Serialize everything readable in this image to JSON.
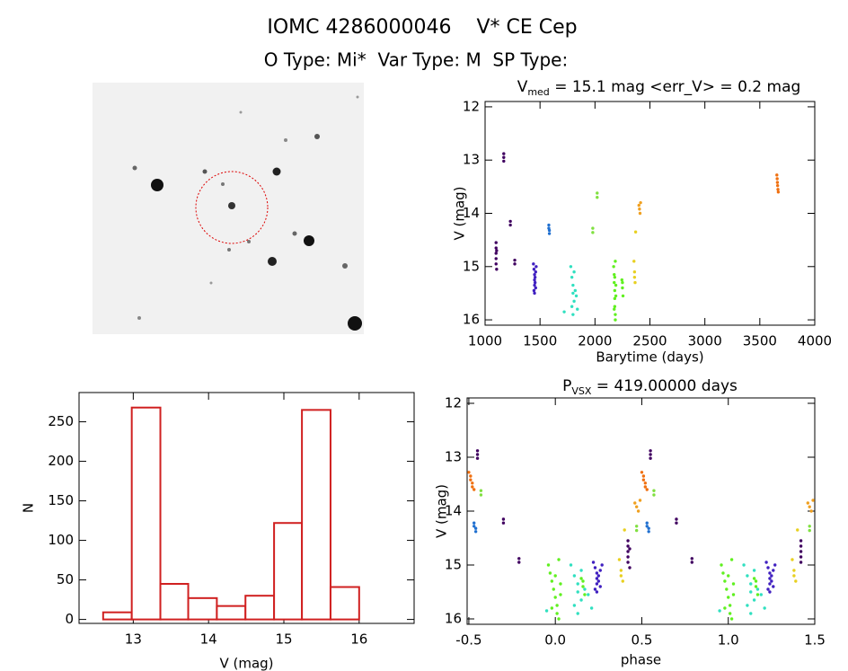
{
  "header": {
    "title": "IOMC 4286000046    V* CE Cep",
    "subtitle": "O Type: Mi*  Var Type: M  SP Type:"
  },
  "chart_data": [
    {
      "type": "scatter",
      "title": {
        "base": "V",
        "sub": "med",
        "rest": " = 15.1 mag <err_V> = 0.2 mag"
      },
      "xlabel": "Barytime (days)",
      "ylabel": "V (mag)",
      "xlim": [
        1000,
        4000
      ],
      "ylim": [
        16.1,
        11.9
      ],
      "xticks": [
        1000,
        1500,
        2000,
        2500,
        3000,
        3500,
        4000
      ],
      "yticks": [
        12,
        13,
        14,
        15,
        16
      ],
      "series": [
        {
          "color": "#400060",
          "x": [
            1100,
            1100,
            1100,
            1100,
            1100,
            1105,
            1105,
            1170,
            1170,
            1170,
            1230,
            1230,
            1270,
            1270
          ],
          "values": [
            14.55,
            14.65,
            14.75,
            14.85,
            14.95,
            15.05,
            14.7,
            12.88,
            12.95,
            13.02,
            14.15,
            14.22,
            14.88,
            14.95
          ]
        },
        {
          "color": "#4020c0",
          "x": [
            1440,
            1445,
            1450,
            1450,
            1455,
            1460,
            1445,
            1450,
            1455,
            1460,
            1450,
            1465
          ],
          "values": [
            14.95,
            15.05,
            15.15,
            15.25,
            15.3,
            15.4,
            15.45,
            15.5,
            15.2,
            15.1,
            15.35,
            15.0
          ]
        },
        {
          "color": "#2070d0",
          "x": [
            1580,
            1580,
            1585,
            1585
          ],
          "values": [
            14.22,
            14.28,
            14.32,
            14.38
          ]
        },
        {
          "color": "#30e0c0",
          "x": [
            1720,
            1780,
            1790,
            1800,
            1800,
            1810,
            1820,
            1830,
            1840,
            1790,
            1810,
            1800
          ],
          "values": [
            15.85,
            15.0,
            15.2,
            15.35,
            15.5,
            15.65,
            15.45,
            15.55,
            15.8,
            15.75,
            15.1,
            15.9
          ]
        },
        {
          "color": "#80e040",
          "x": [
            1980,
            1980,
            2020,
            2020
          ],
          "values": [
            14.28,
            14.36,
            13.62,
            13.7
          ]
        },
        {
          "color": "#60f020",
          "x": [
            2170,
            2175,
            2175,
            2180,
            2180,
            2180,
            2185,
            2185,
            2190,
            2190,
            2180,
            2175,
            2185,
            2245,
            2250,
            2255,
            2250
          ],
          "values": [
            15.0,
            15.15,
            15.3,
            15.45,
            15.6,
            15.75,
            15.9,
            16.0,
            15.55,
            15.35,
            15.2,
            15.8,
            14.9,
            15.25,
            15.4,
            15.55,
            15.3
          ]
        },
        {
          "color": "#e8d020",
          "x": [
            2355,
            2360,
            2360,
            2365,
            2370
          ],
          "values": [
            14.9,
            15.1,
            15.2,
            15.3,
            14.35
          ]
        },
        {
          "color": "#f0a020",
          "x": [
            2400,
            2405,
            2410,
            2415
          ],
          "values": [
            13.85,
            13.92,
            14.0,
            13.8
          ]
        },
        {
          "color": "#f07010",
          "x": [
            3655,
            3658,
            3660,
            3662,
            3665,
            3668
          ],
          "values": [
            13.28,
            13.35,
            13.42,
            13.48,
            13.55,
            13.6
          ]
        }
      ]
    },
    {
      "type": "histogram",
      "xlabel": "V (mag)",
      "ylabel": "N",
      "bins": [
        12.6,
        12.98,
        13.36,
        13.73,
        14.11,
        14.49,
        14.87,
        15.24,
        15.62,
        16.0
      ],
      "values": [
        9,
        268,
        45,
        27,
        17,
        30,
        122,
        265,
        41
      ],
      "color": "#d02020",
      "xlim": [
        12.28,
        16.73
      ],
      "ylim": [
        -5,
        287
      ],
      "xticks": [
        13,
        14,
        15,
        16
      ],
      "yticks": [
        0,
        50,
        100,
        150,
        200,
        250
      ]
    },
    {
      "type": "scatter",
      "title": {
        "base": "P",
        "sub": "VSX",
        "rest": " = 419.00000 days"
      },
      "xlabel": "phase",
      "ylabel": "V (mag)",
      "xlim": [
        -0.51,
        1.5
      ],
      "ylim": [
        16.1,
        11.9
      ],
      "xticks": [
        -0.5,
        {
          "value": 0,
          "label": "0.0"
        },
        0.5,
        {
          "value": 1,
          "label": "1.0"
        },
        1.5
      ],
      "yticks": [
        12,
        13,
        14,
        15,
        16
      ],
      "series": [
        {
          "color": "#400060",
          "x": [
            0.42,
            0.42,
            0.42,
            0.42,
            0.42,
            0.43,
            0.43,
            0.55,
            0.55,
            0.55,
            -0.45,
            -0.45,
            -0.45,
            0.7,
            0.7,
            -0.3,
            -0.3,
            0.79,
            0.79,
            -0.21,
            -0.21,
            1.42,
            1.42,
            1.42,
            1.42,
            1.42
          ],
          "values": [
            14.55,
            14.65,
            14.75,
            14.85,
            14.95,
            15.05,
            14.7,
            12.88,
            12.95,
            13.02,
            12.88,
            12.95,
            13.02,
            14.15,
            14.22,
            14.15,
            14.22,
            14.88,
            14.95,
            14.88,
            14.95,
            14.55,
            14.65,
            14.75,
            14.85,
            14.95
          ]
        },
        {
          "color": "#4020c0",
          "x": [
            0.22,
            0.23,
            0.24,
            0.24,
            0.25,
            0.26,
            0.23,
            0.24,
            0.25,
            0.26,
            0.24,
            0.27,
            1.22,
            1.23,
            1.24,
            1.24,
            1.25,
            1.26,
            1.23,
            1.24,
            1.25,
            1.26,
            1.24,
            1.27
          ],
          "values": [
            14.95,
            15.05,
            15.15,
            15.25,
            15.3,
            15.4,
            15.45,
            15.5,
            15.2,
            15.1,
            15.35,
            15.0,
            14.95,
            15.05,
            15.15,
            15.25,
            15.3,
            15.4,
            15.45,
            15.5,
            15.2,
            15.1,
            15.35,
            15.0
          ]
        },
        {
          "color": "#2070d0",
          "x": [
            -0.47,
            -0.47,
            -0.46,
            -0.46,
            0.53,
            0.53,
            0.54,
            0.54
          ],
          "values": [
            14.22,
            14.28,
            14.32,
            14.38,
            14.22,
            14.28,
            14.32,
            14.38
          ]
        },
        {
          "color": "#30e0c0",
          "x": [
            -0.05,
            0.09,
            0.11,
            0.13,
            0.13,
            0.15,
            0.17,
            0.19,
            0.21,
            0.11,
            0.15,
            0.13,
            0.95,
            1.09,
            1.11,
            1.13,
            1.13,
            1.15,
            1.17,
            1.19,
            1.21,
            1.11,
            1.15,
            1.13
          ],
          "values": [
            15.85,
            15.0,
            15.2,
            15.35,
            15.5,
            15.65,
            15.45,
            15.55,
            15.8,
            15.75,
            15.1,
            15.9,
            15.85,
            15.0,
            15.2,
            15.35,
            15.5,
            15.65,
            15.45,
            15.55,
            15.8,
            15.75,
            15.1,
            15.9
          ]
        },
        {
          "color": "#80e040",
          "x": [
            0.47,
            0.47,
            0.57,
            0.57,
            -0.43,
            -0.43,
            1.47,
            1.47
          ],
          "values": [
            14.28,
            14.36,
            13.62,
            13.7,
            13.62,
            13.7,
            14.28,
            14.36
          ]
        },
        {
          "color": "#60f020",
          "x": [
            -0.04,
            -0.03,
            -0.02,
            -0.01,
            0.0,
            0.01,
            0.01,
            0.02,
            0.03,
            0.03,
            0.0,
            -0.02,
            0.02,
            0.15,
            0.16,
            0.17,
            0.16,
            0.96,
            0.97,
            0.98,
            0.99,
            1.0,
            1.01,
            1.01,
            1.02,
            1.03,
            1.03,
            1.0,
            0.98,
            1.02,
            1.15,
            1.16,
            1.17,
            1.16
          ],
          "values": [
            15.0,
            15.15,
            15.3,
            15.45,
            15.6,
            15.75,
            15.9,
            16.0,
            15.55,
            15.35,
            15.2,
            15.8,
            14.9,
            15.25,
            15.4,
            15.55,
            15.3,
            15.0,
            15.15,
            15.3,
            15.45,
            15.6,
            15.75,
            15.9,
            16.0,
            15.55,
            15.35,
            15.2,
            15.8,
            14.9,
            15.25,
            15.4,
            15.55,
            15.3
          ]
        },
        {
          "color": "#e8d020",
          "x": [
            0.37,
            0.38,
            0.38,
            0.39,
            0.4,
            1.37,
            1.38,
            1.38,
            1.39,
            1.4
          ],
          "values": [
            14.9,
            15.1,
            15.2,
            15.3,
            14.35,
            14.9,
            15.1,
            15.2,
            15.3,
            14.35
          ]
        },
        {
          "color": "#f0a020",
          "x": [
            0.46,
            0.47,
            0.48,
            0.49,
            1.46,
            1.47,
            1.48,
            1.49
          ],
          "values": [
            13.85,
            13.92,
            14.0,
            13.8,
            13.85,
            13.92,
            14.0,
            13.8
          ]
        },
        {
          "color": "#f07010",
          "x": [
            0.5,
            0.51,
            0.51,
            0.52,
            0.52,
            0.53,
            -0.5,
            -0.49,
            -0.49,
            -0.48,
            -0.48,
            -0.47
          ],
          "values": [
            13.28,
            13.35,
            13.42,
            13.48,
            13.55,
            13.6,
            13.28,
            13.35,
            13.42,
            13.48,
            13.55,
            13.6
          ]
        }
      ]
    }
  ]
}
